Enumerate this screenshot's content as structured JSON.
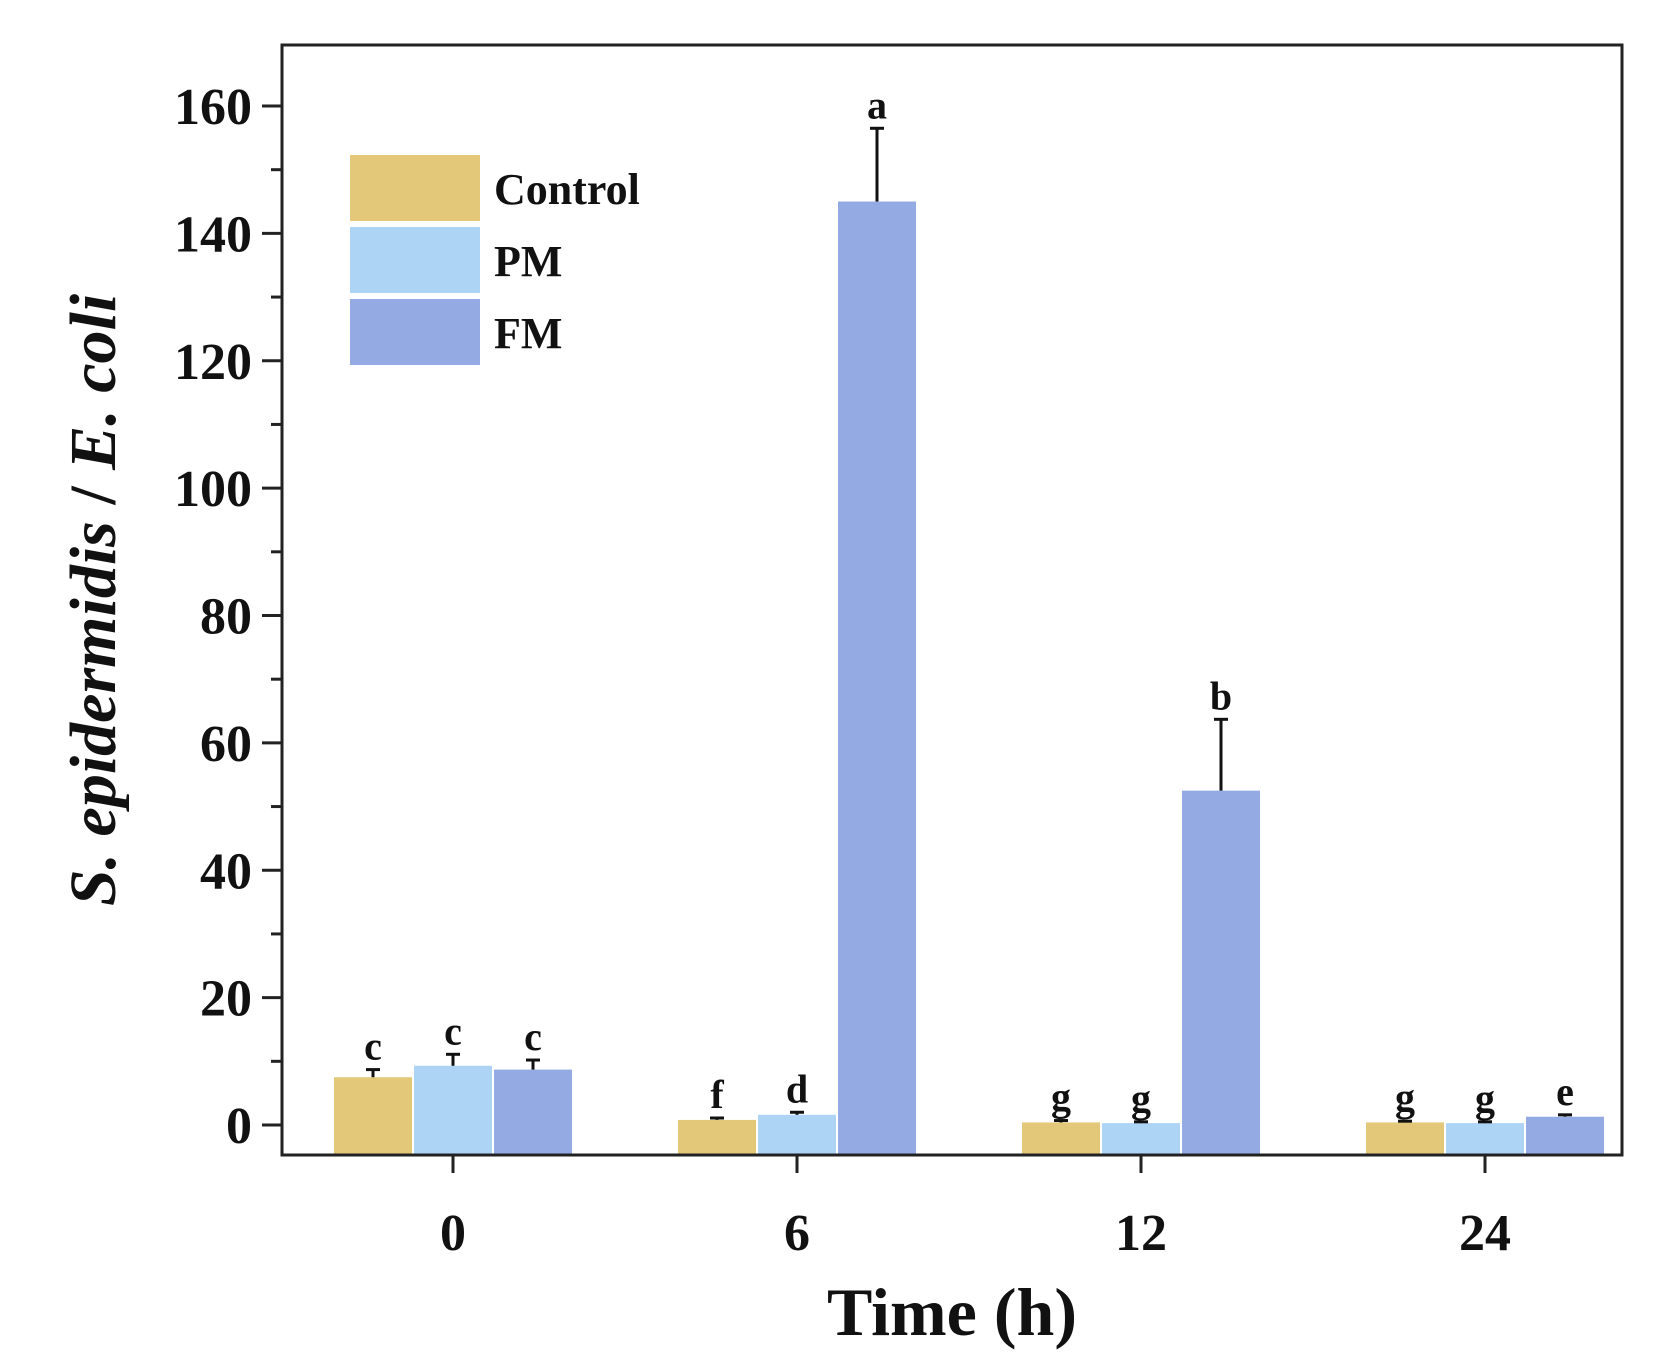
{
  "chart_data": {
    "type": "bar",
    "title": "",
    "xlabel": "Time (h)",
    "ylabel_parts": [
      {
        "text": "S. epidermidis",
        "italic": true
      },
      {
        "text": " / ",
        "italic": false
      },
      {
        "text": "E. coli",
        "italic": true
      }
    ],
    "categories": [
      "0",
      "6",
      "12",
      "24"
    ],
    "ylim": [
      -5,
      170
    ],
    "yticks": [
      0,
      20,
      40,
      60,
      80,
      100,
      120,
      140,
      160
    ],
    "ytick_labels": [
      "0",
      "20",
      "40",
      "60",
      "80",
      "100",
      "120",
      "140",
      "160"
    ],
    "legend_position": "top-left",
    "series": [
      {
        "name": "Control",
        "color": "#E2C878",
        "values": [
          7.5,
          0.8,
          0.4,
          0.4
        ],
        "errors": [
          1.2,
          0.3,
          0.3,
          0.2
        ],
        "labels": [
          "c",
          "f",
          "g",
          "g"
        ]
      },
      {
        "name": "PM",
        "color": "#AED4F5",
        "values": [
          9.3,
          1.6,
          0.3,
          0.3
        ],
        "errors": [
          1.8,
          0.4,
          0.2,
          0.2
        ],
        "labels": [
          "c",
          "d",
          "g",
          "g"
        ]
      },
      {
        "name": "FM",
        "color": "#93ABE2",
        "values": [
          8.7,
          145,
          52.5,
          1.3
        ],
        "errors": [
          1.5,
          11.5,
          11.2,
          0.3
        ],
        "labels": [
          "c",
          "a",
          "b",
          "e"
        ]
      }
    ]
  }
}
